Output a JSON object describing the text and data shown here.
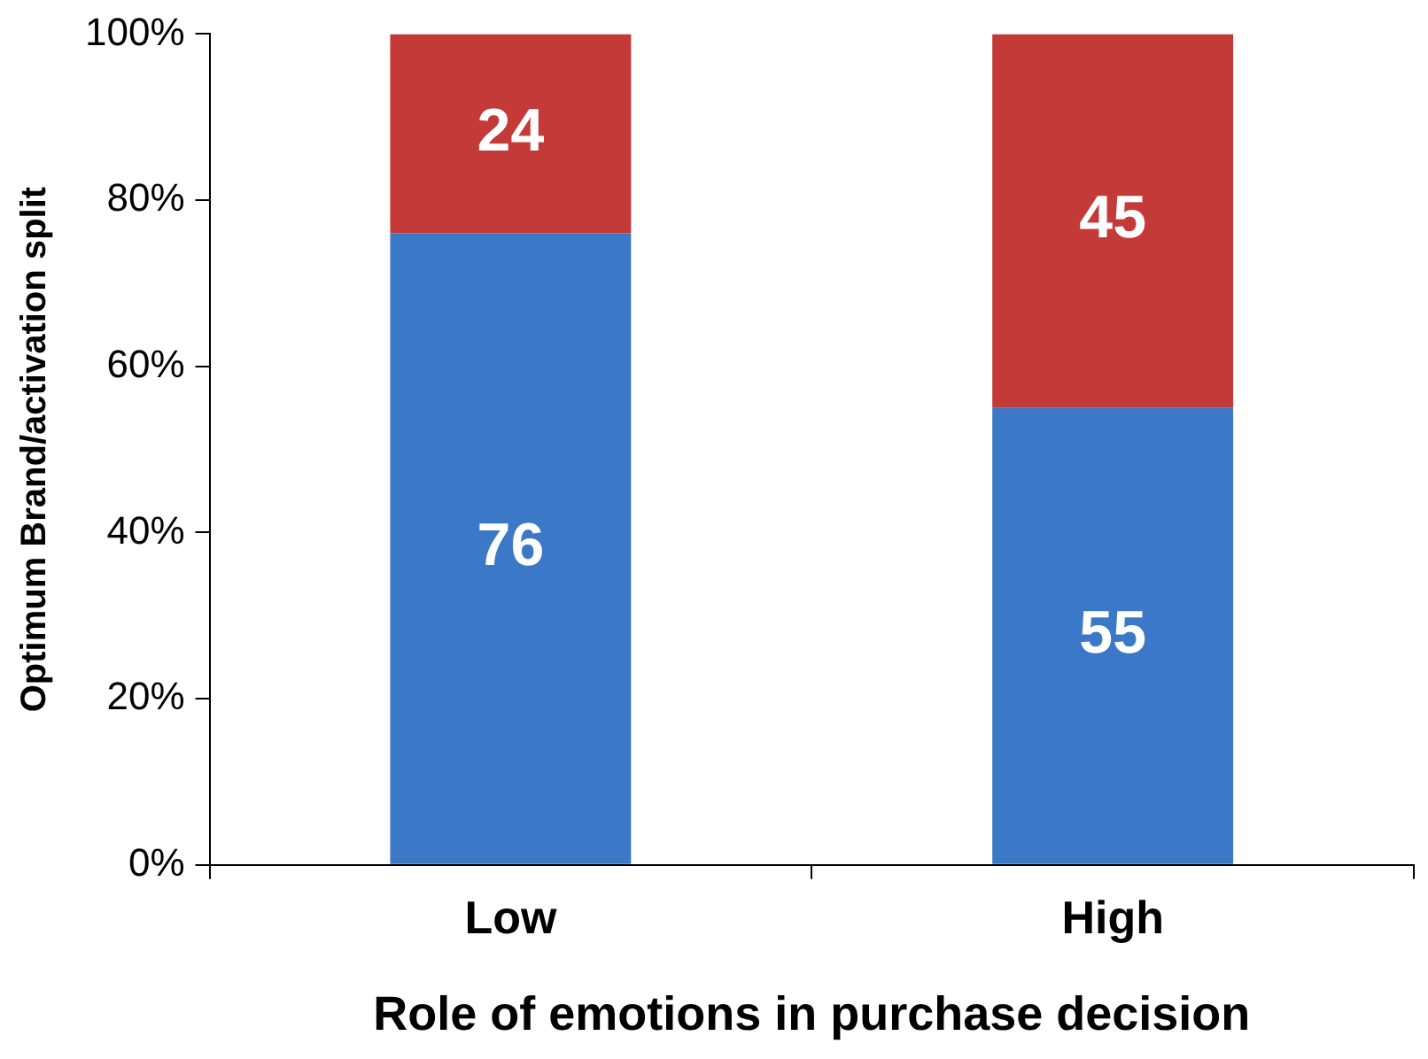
{
  "chart_data": {
    "type": "bar",
    "stacked": true,
    "xlabel": "Role of emotions in purchase decision",
    "ylabel": "Optimum Brand/activation split",
    "categories": [
      "Low",
      "High"
    ],
    "series": [
      {
        "color": "#3b79c8",
        "values": [
          76,
          55
        ]
      },
      {
        "color": "#c43a39",
        "values": [
          24,
          45
        ]
      }
    ],
    "ylim": [
      0,
      100
    ],
    "yticks": [
      {
        "value": 0,
        "label": "0%"
      },
      {
        "value": 20,
        "label": "20%"
      },
      {
        "value": 40,
        "label": "40%"
      },
      {
        "value": 60,
        "label": "60%"
      },
      {
        "value": 80,
        "label": "80%"
      },
      {
        "value": 100,
        "label": "100%"
      }
    ],
    "data_labels": true,
    "grid": false,
    "legend": false
  }
}
